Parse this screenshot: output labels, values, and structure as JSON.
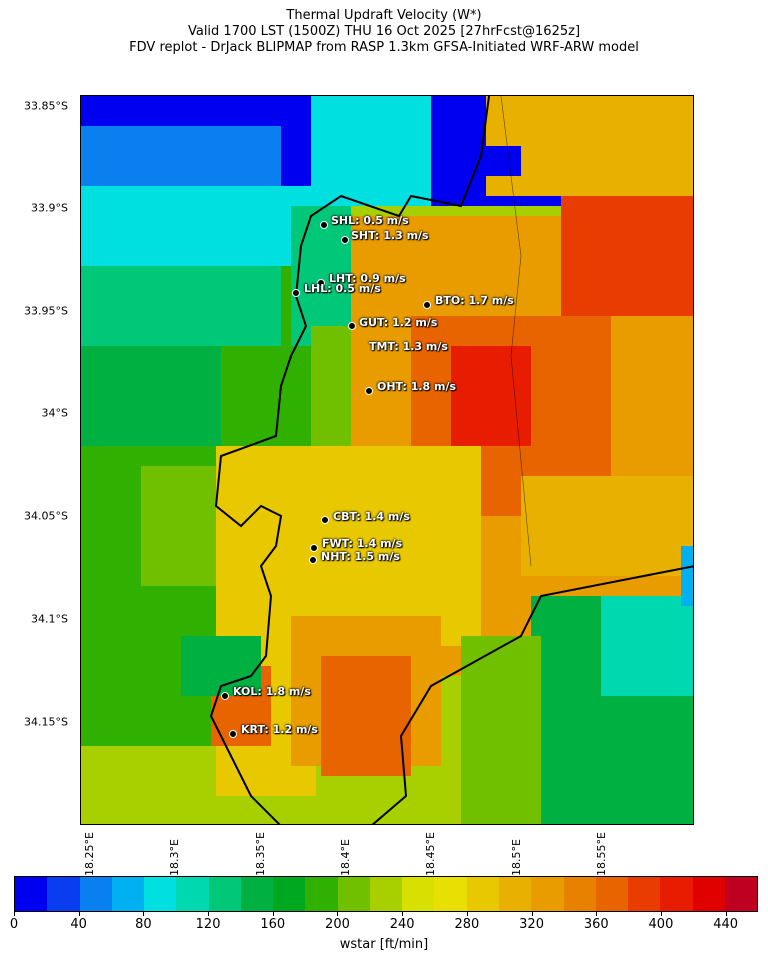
{
  "title": {
    "line1": "Thermal Updraft Velocity (W*)",
    "line2": "Valid 1700 LST (1500Z) THU 16 Oct 2025 [27hrFcst@1625z]",
    "line3": "FDV replot - DrJack BLIPMAP from RASP 1.3km GFSA-Initiated WRF-ARW model"
  },
  "lat_ticks": [
    "33.85°S",
    "33.9°S",
    "33.95°S",
    "34°S",
    "34.05°S",
    "34.1°S",
    "34.15°S"
  ],
  "lon_ticks": [
    "18.25°E",
    "18.3°E",
    "18.35°E",
    "18.4°E",
    "18.45°E",
    "18.5°E",
    "18.55°E"
  ],
  "sites": [
    {
      "code": "SHL",
      "label": "SHL: 0.5 m/s"
    },
    {
      "code": "SHT",
      "label": "SHT: 1.3 m/s"
    },
    {
      "code": "LHT",
      "label": "LHT: 0.9 m/s"
    },
    {
      "code": "LHL",
      "label": "LHL: 0.5 m/s"
    },
    {
      "code": "BTO",
      "label": "BTO: 1.7 m/s"
    },
    {
      "code": "GUT",
      "label": "GUT: 1.2 m/s"
    },
    {
      "code": "TMT",
      "label": "TMT: 1.3 m/s"
    },
    {
      "code": "OHT",
      "label": "OHT: 1.8 m/s"
    },
    {
      "code": "CBT",
      "label": "CBT: 1.4 m/s"
    },
    {
      "code": "FWT",
      "label": "FWT: 1.4 m/s"
    },
    {
      "code": "NHT",
      "label": "NHT: 1.5 m/s"
    },
    {
      "code": "KOL",
      "label": "KOL: 1.8 m/s"
    },
    {
      "code": "KRT",
      "label": "KRT: 1.2 m/s"
    }
  ],
  "colorbar": {
    "title": "wstar [ft/min]",
    "tick_labels": [
      "0",
      "40",
      "80",
      "120",
      "160",
      "200",
      "240",
      "280",
      "320",
      "360",
      "400",
      "440"
    ],
    "colors": [
      "#0000f0",
      "#0a3cf0",
      "#0a80f0",
      "#00b0f0",
      "#00e0e0",
      "#00d8b0",
      "#00c878",
      "#00b040",
      "#00a820",
      "#30b000",
      "#70c000",
      "#a8d000",
      "#d8e000",
      "#e8e000",
      "#e8c800",
      "#e8b000",
      "#e89c00",
      "#e88000",
      "#e86400",
      "#e83c00",
      "#e81c00",
      "#e00000",
      "#c00020"
    ]
  }
}
